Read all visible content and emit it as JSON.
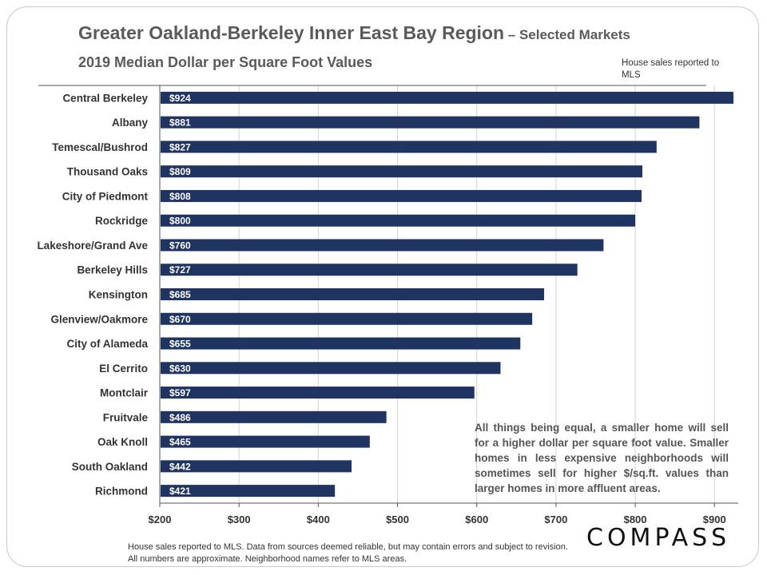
{
  "header": {
    "title_main": "Greater Oakland-Berkeley Inner East Bay Region",
    "title_sub": " – Selected Markets",
    "subtitle": "2019 Median Dollar per Square Foot Values",
    "note": "House sales reported to MLS"
  },
  "callout": "All things being equal, a smaller home will sell for a higher dollar per square foot value. Smaller homes in less expensive neighborhoods will sometimes sell for higher $/sq.ft. values than larger homes in more affluent areas.",
  "footer": "House sales reported to MLS. Data from sources deemed reliable, but may contain errors and subject to revision. All numbers are approximate. Neighborhood names refer to MLS areas.",
  "logo": "COMPASS",
  "chart_data": {
    "type": "bar",
    "orientation": "horizontal",
    "title": "2019 Median Dollar per Square Foot Values",
    "categories": [
      "Central Berkeley",
      "Albany",
      "Temescal/Bushrod",
      "Thousand Oaks",
      "City of Piedmont",
      "Rockridge",
      "Lakeshore/Grand Ave",
      "Berkeley Hills",
      "Kensington",
      "Glenview/Oakmore",
      "City of Alameda",
      "El Cerrito",
      "Montclair",
      "Fruitvale",
      "Oak Knoll",
      "South Oakland",
      "Richmond"
    ],
    "values": [
      924,
      881,
      827,
      809,
      808,
      800,
      760,
      727,
      685,
      670,
      655,
      630,
      597,
      486,
      465,
      442,
      421
    ],
    "data_labels": [
      "$924",
      "$881",
      "$827",
      "$809",
      "$808",
      "$800",
      "$760",
      "$727",
      "$685",
      "$670",
      "$655",
      "$630",
      "$597",
      "$486",
      "$465",
      "$442",
      "$421"
    ],
    "xlim": [
      200,
      930
    ],
    "xticks": [
      200,
      300,
      400,
      500,
      600,
      700,
      800,
      900
    ],
    "xtick_labels": [
      "$200",
      "$300",
      "$400",
      "$500",
      "$600",
      "$700",
      "$800",
      "$900"
    ],
    "grid": "vertical",
    "colors": {
      "bar": "#1f3461",
      "grid": "#d4d4d4",
      "label": "#ffffff"
    }
  }
}
